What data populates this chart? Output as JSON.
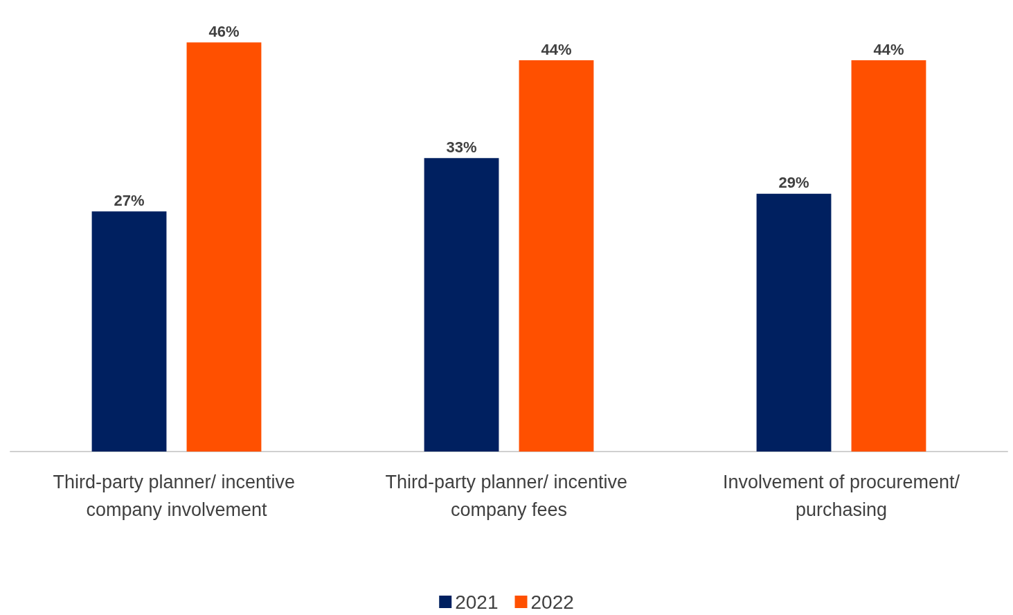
{
  "chart_data": {
    "type": "bar",
    "categories": [
      "Third-party planner/ incentive company involvement",
      "Third-party planner/ incentive company fees",
      "Involvement of procurement/purchasing"
    ],
    "series": [
      {
        "name": "2021",
        "color": "#002060",
        "values": [
          27,
          33,
          29
        ],
        "value_labels": [
          "27%",
          "33%",
          "29%"
        ]
      },
      {
        "name": "2022",
        "color": "#ff5000",
        "values": [
          46,
          44,
          44
        ],
        "value_labels": [
          "46%",
          "44%",
          "44%"
        ]
      }
    ],
    "grid": false,
    "legend": "bottom",
    "tick_labels": "x"
  }
}
